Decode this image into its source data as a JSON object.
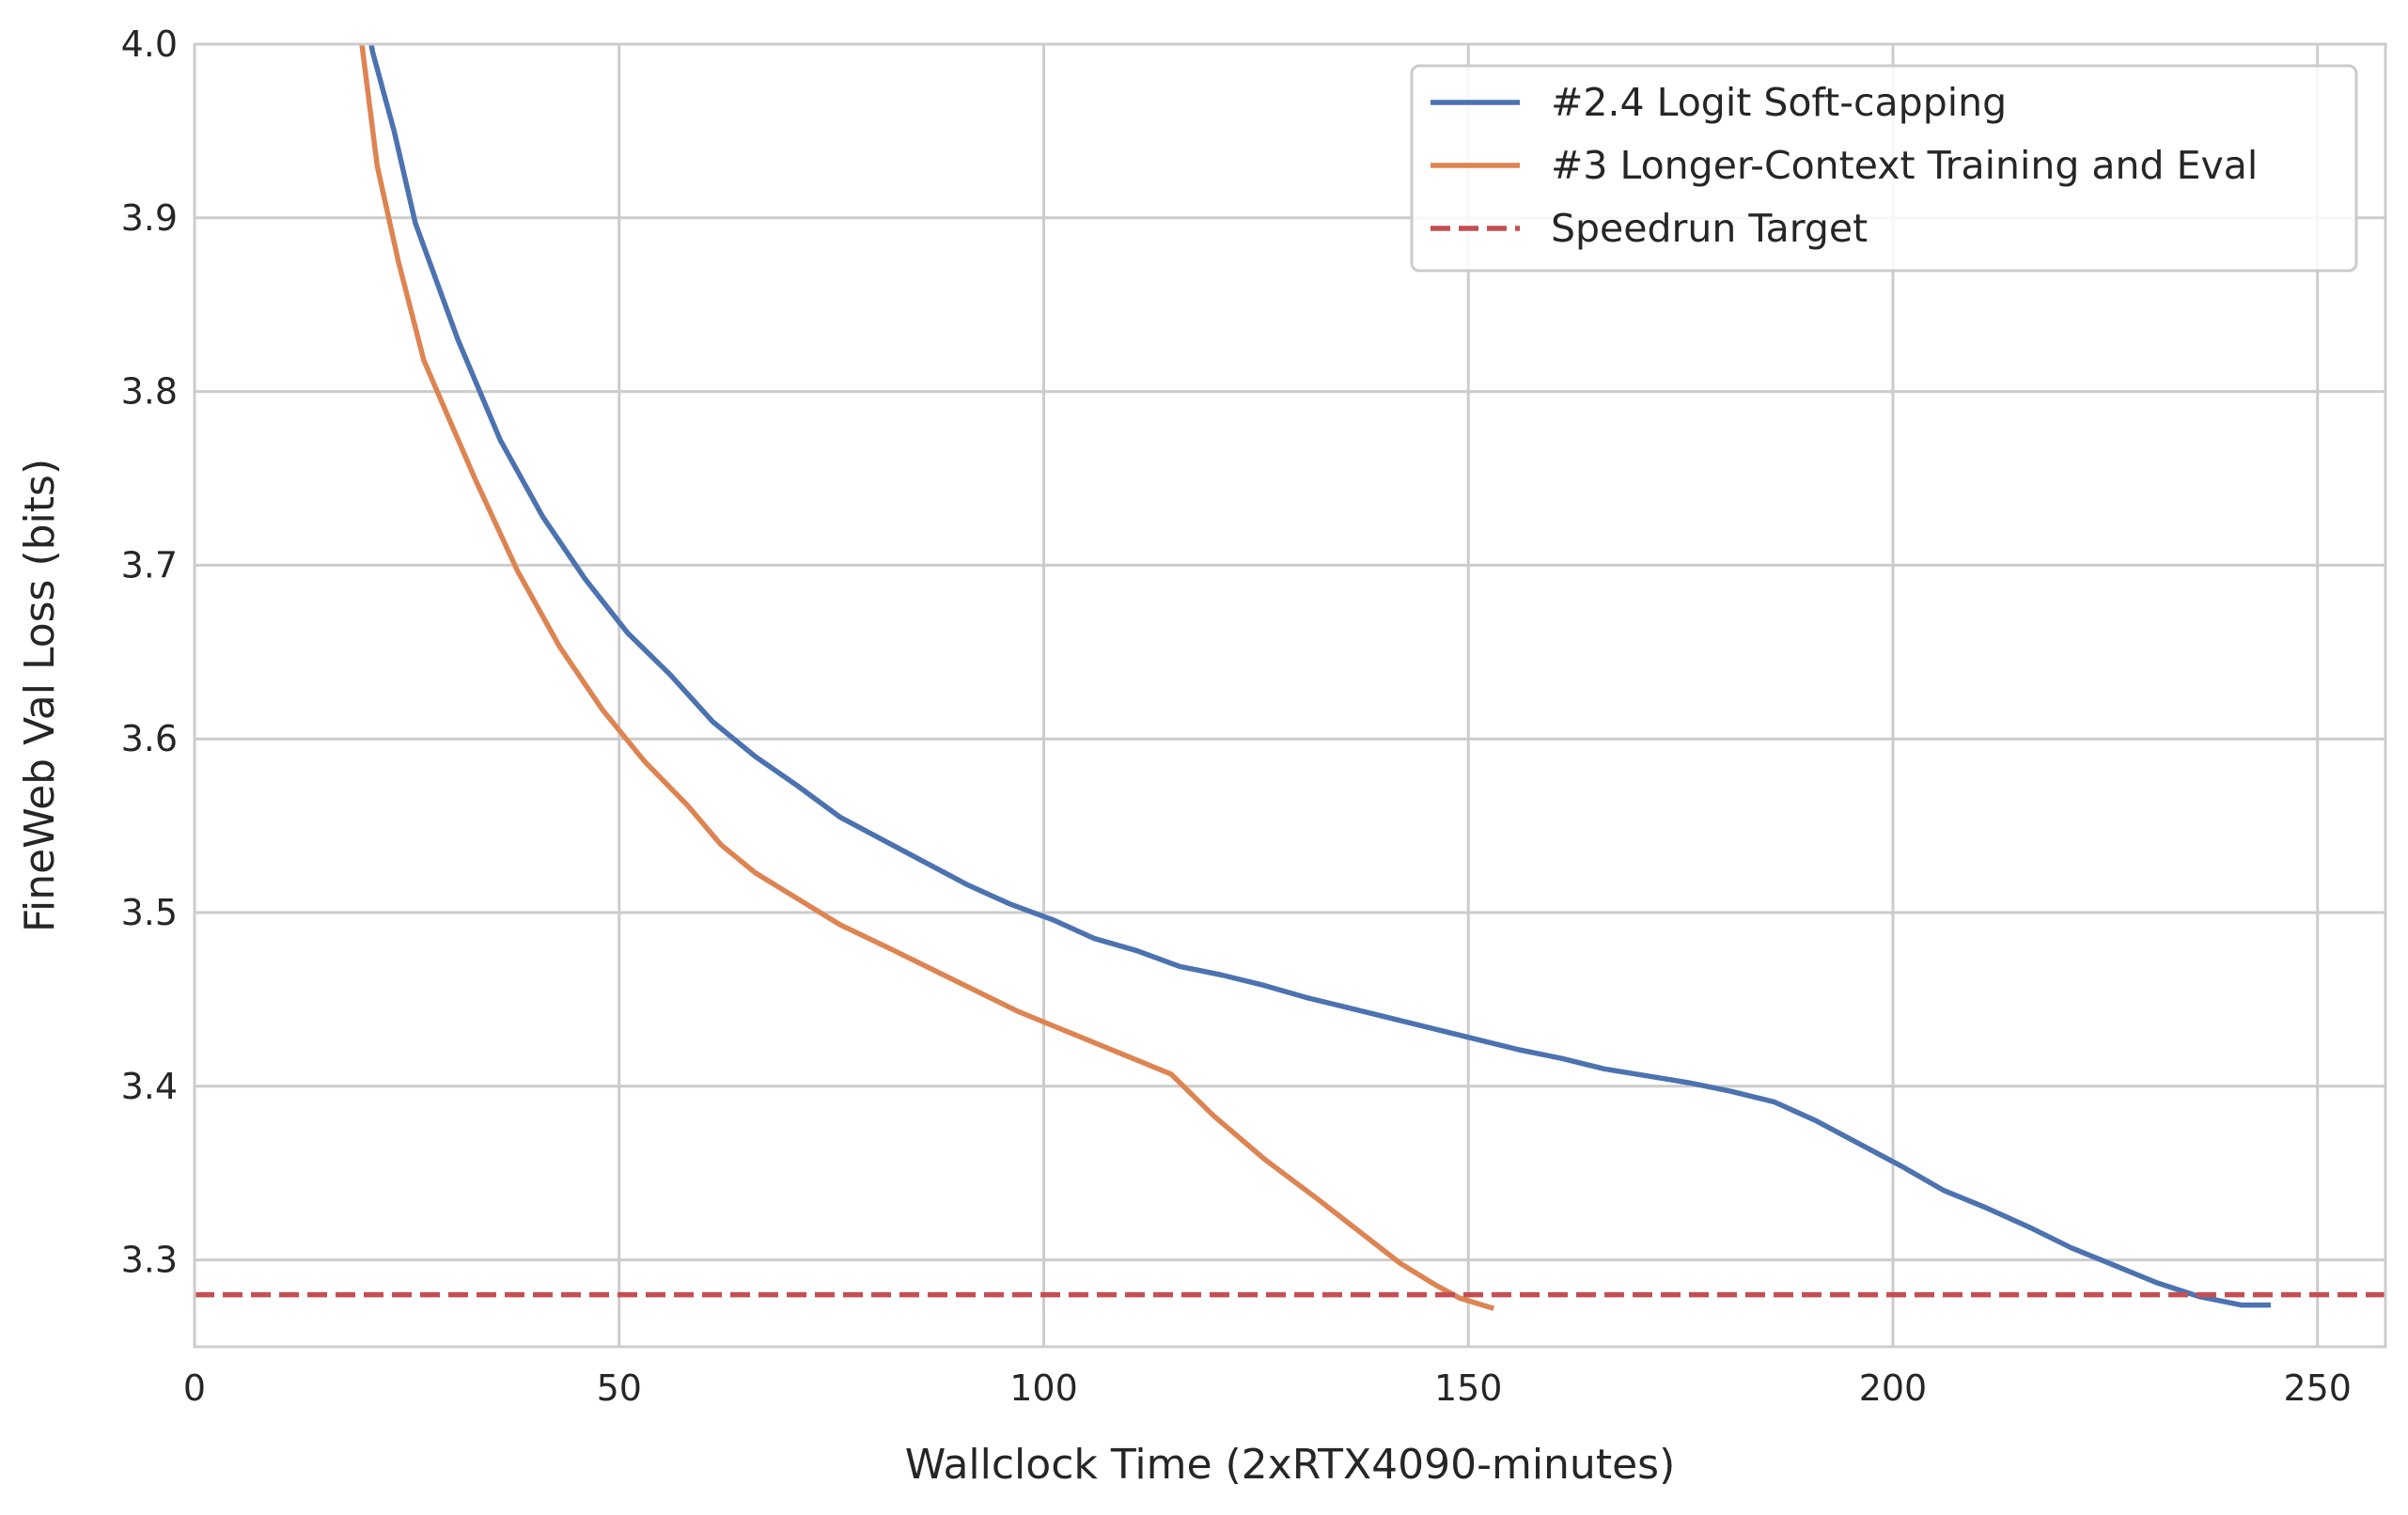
{
  "chart_data": {
    "type": "line",
    "title": "",
    "xlabel": "Wallclock Time (2xRTX4090-minutes)",
    "ylabel": "FineWeb Val Loss (bits)",
    "xlim": [
      0,
      258
    ],
    "ylim": [
      3.25,
      4.0
    ],
    "xticks": [
      0,
      50,
      100,
      150,
      200,
      250
    ],
    "xtick_labels": [
      "0",
      "50",
      "100",
      "150",
      "200",
      "250"
    ],
    "yticks": [
      3.3,
      3.4,
      3.5,
      3.6,
      3.7,
      3.8,
      3.9,
      4.0
    ],
    "ytick_labels": [
      "3.3",
      "3.4",
      "3.5",
      "3.6",
      "3.7",
      "3.8",
      "3.9",
      "4.0"
    ],
    "grid": true,
    "legend_position": "top-right",
    "series": [
      {
        "name": "#2.4 Logit Soft-capping",
        "color": "#4c72b0",
        "style": "solid",
        "x": [
          20.8,
          21.0,
          23.5,
          26.0,
          31.0,
          36.0,
          41.0,
          46.0,
          51.0,
          56.0,
          61.0,
          66.0,
          71.0,
          76.0,
          81.0,
          86.0,
          91.0,
          96.0,
          101.0,
          106.0,
          111.0,
          116.0,
          121.0,
          126.0,
          131.0,
          136.0,
          141.0,
          146.0,
          151.0,
          156.0,
          161.0,
          166.0,
          171.0,
          176.0,
          181.0,
          186.0,
          191.0,
          196.0,
          201.0,
          206.0,
          211.0,
          216.0,
          221.0,
          226.0,
          231.0,
          236.0,
          241.0,
          244.5
        ],
        "y": [
          4.0,
          3.995,
          3.95,
          3.897,
          3.83,
          3.772,
          3.728,
          3.692,
          3.661,
          3.637,
          3.61,
          3.59,
          3.573,
          3.555,
          3.542,
          3.529,
          3.516,
          3.505,
          3.496,
          3.485,
          3.478,
          3.469,
          3.464,
          3.458,
          3.451,
          3.445,
          3.439,
          3.433,
          3.427,
          3.421,
          3.416,
          3.41,
          3.406,
          3.402,
          3.397,
          3.391,
          3.38,
          3.367,
          3.354,
          3.34,
          3.33,
          3.319,
          3.307,
          3.297,
          3.287,
          3.279,
          3.274,
          3.274
        ]
      },
      {
        "name": "#3 Longer-Context Training and Eval",
        "color": "#dd8452",
        "style": "solid",
        "x": [
          19.7,
          21.5,
          24.0,
          27.0,
          30.0,
          33.0,
          38.0,
          43.0,
          48.0,
          53.0,
          58.0,
          62.0,
          66.0,
          71.0,
          76.0,
          82.0,
          87.0,
          92.0,
          97.0,
          103.0,
          109.0,
          115.0,
          120.0,
          126.0,
          132.0,
          137.0,
          142.0,
          146.0,
          149.0,
          151.0,
          153.0
        ],
        "y": [
          4.0,
          3.93,
          3.875,
          3.818,
          3.784,
          3.75,
          3.697,
          3.653,
          3.617,
          3.587,
          3.562,
          3.539,
          3.523,
          3.508,
          3.493,
          3.479,
          3.467,
          3.455,
          3.443,
          3.431,
          3.419,
          3.407,
          3.383,
          3.358,
          3.336,
          3.317,
          3.298,
          3.286,
          3.278,
          3.275,
          3.272
        ]
      },
      {
        "name": "Speedrun Target",
        "color": "#c44e52",
        "style": "dashed",
        "x": [
          0,
          258
        ],
        "y": [
          3.28,
          3.28
        ]
      }
    ]
  }
}
